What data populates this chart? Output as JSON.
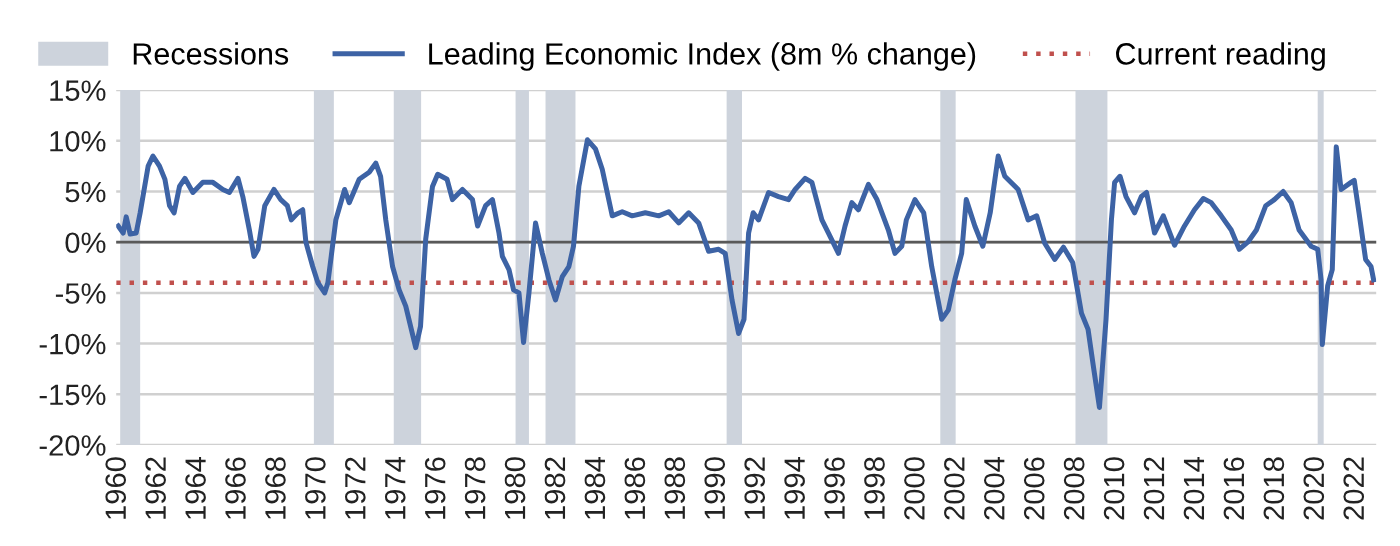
{
  "chart_data": {
    "type": "line",
    "x": [
      1960.0,
      1960.25,
      1960.4,
      1960.6,
      1960.9,
      1961.1,
      1961.5,
      1961.74,
      1962.07,
      1962.34,
      1962.57,
      1962.8,
      1963.07,
      1963.34,
      1963.74,
      1964.24,
      1964.74,
      1965.24,
      1965.57,
      1966.0,
      1966.24,
      1966.57,
      1966.8,
      1967.0,
      1967.34,
      1967.8,
      1968.14,
      1968.47,
      1968.67,
      1969.0,
      1969.24,
      1969.4,
      1969.74,
      1970.0,
      1970.34,
      1970.5,
      1970.9,
      1971.34,
      1971.57,
      1972.07,
      1972.57,
      1972.9,
      1973.14,
      1973.4,
      1973.74,
      1974.07,
      1974.4,
      1974.9,
      1975.14,
      1975.4,
      1975.74,
      1976.0,
      1976.47,
      1976.74,
      1977.24,
      1977.74,
      1978.0,
      1978.4,
      1978.74,
      1979.07,
      1979.24,
      1979.57,
      1979.8,
      1980.07,
      1980.3,
      1980.57,
      1980.9,
      1981.24,
      1981.57,
      1981.9,
      1982.24,
      1982.57,
      1982.8,
      1983.07,
      1983.5,
      1983.9,
      1984.24,
      1984.74,
      1985.24,
      1985.74,
      1986.4,
      1987.07,
      1987.57,
      1988.07,
      1988.57,
      1989.07,
      1989.57,
      1990.07,
      1990.4,
      1990.74,
      1991.07,
      1991.34,
      1991.57,
      1991.8,
      1992.07,
      1992.57,
      1993.07,
      1993.57,
      1993.9,
      1994.4,
      1994.74,
      1995.24,
      1995.57,
      1996.07,
      1996.4,
      1996.74,
      1997.07,
      1997.57,
      1998.0,
      1998.57,
      1998.9,
      1999.24,
      1999.47,
      1999.9,
      2000.34,
      2000.74,
      2001.24,
      2001.57,
      2001.9,
      2002.24,
      2002.47,
      2002.9,
      2003.3,
      2003.67,
      2004.07,
      2004.4,
      2005.07,
      2005.57,
      2006.0,
      2006.4,
      2006.9,
      2007.34,
      2007.8,
      2008.24,
      2008.57,
      2008.84,
      2009.14,
      2009.47,
      2009.74,
      2009.9,
      2010.17,
      2010.47,
      2010.9,
      2011.24,
      2011.5,
      2011.9,
      2012.34,
      2012.9,
      2013.4,
      2013.9,
      2014.34,
      2014.74,
      2015.24,
      2015.74,
      2016.14,
      2016.57,
      2017.0,
      2017.47,
      2017.9,
      2018.34,
      2018.74,
      2019.14,
      2019.74,
      2020.07,
      2020.24,
      2020.3,
      2020.57,
      2020.8,
      2021.0,
      2021.24,
      2021.74,
      2021.9,
      2022.14,
      2022.47,
      2022.74,
      2022.87
    ],
    "series": [
      {
        "name": "Leading Economic Index (8m % change)",
        "color": "#3d63a5",
        "values": [
          1.6,
          0.9,
          2.5,
          0.8,
          0.9,
          2.9,
          7.5,
          8.5,
          7.5,
          6.2,
          3.6,
          2.9,
          5.5,
          6.3,
          4.9,
          5.9,
          5.9,
          5.2,
          4.9,
          6.3,
          4.5,
          1.2,
          -1.4,
          -0.7,
          3.6,
          5.2,
          4.2,
          3.6,
          2.2,
          2.9,
          3.2,
          0,
          -2.4,
          -4.0,
          -5.0,
          -4.0,
          2.2,
          5.2,
          3.9,
          6.2,
          6.9,
          7.8,
          6.5,
          2.2,
          -2.4,
          -4.7,
          -6.3,
          -10.4,
          -8.3,
          0.3,
          5.5,
          6.7,
          6.2,
          4.2,
          5.2,
          4.2,
          1.6,
          3.6,
          4.2,
          0.9,
          -1.4,
          -2.7,
          -4.7,
          -5.0,
          -9.9,
          -5.0,
          1.9,
          -1.1,
          -3.7,
          -5.7,
          -3.4,
          -2.4,
          -0.4,
          5.5,
          10.1,
          9.2,
          7.2,
          2.6,
          3.0,
          2.6,
          2.9,
          2.6,
          3.0,
          1.9,
          2.9,
          1.9,
          -0.9,
          -0.7,
          -1.1,
          -5.7,
          -9.0,
          -7.6,
          0.9,
          2.9,
          2.2,
          4.9,
          4.5,
          4.2,
          5.2,
          6.3,
          5.9,
          2.2,
          0.9,
          -1.1,
          1.6,
          3.9,
          3.2,
          5.7,
          4.2,
          1.2,
          -1.1,
          -0.4,
          2.2,
          4.2,
          2.9,
          -2.4,
          -7.6,
          -6.7,
          -3.7,
          -1.1,
          4.2,
          1.6,
          -0.4,
          2.9,
          8.5,
          6.5,
          5.2,
          2.2,
          2.6,
          -0.1,
          -1.7,
          -0.5,
          -2.0,
          -7.0,
          -8.6,
          -12.3,
          -16.3,
          -7.6,
          2.2,
          5.9,
          6.5,
          4.5,
          2.9,
          4.5,
          4.9,
          0.9,
          2.6,
          -0.3,
          1.6,
          3.2,
          4.3,
          3.9,
          2.6,
          1.2,
          -0.7,
          0,
          1.2,
          3.6,
          4.2,
          5.0,
          3.9,
          1.2,
          -0.4,
          -0.7,
          -3.7,
          -10.1,
          -4.3,
          -2.7,
          9.4,
          5.2,
          5.9,
          6.1,
          2.9,
          -1.7,
          -2.4,
          -3.7
        ]
      }
    ],
    "xlim": [
      1959.9,
      2023.0
    ],
    "xticks": [
      1960,
      1962,
      1964,
      1966,
      1968,
      1970,
      1972,
      1974,
      1976,
      1978,
      1980,
      1982,
      1984,
      1986,
      1988,
      1990,
      1992,
      1994,
      1996,
      1998,
      2000,
      2002,
      2004,
      2006,
      2008,
      2010,
      2012,
      2014,
      2016,
      2018,
      2020,
      2022
    ],
    "ylim": [
      -20,
      15
    ],
    "yticks": [
      {
        "value": -20,
        "label": "-20%"
      },
      {
        "value": -15,
        "label": "-15%"
      },
      {
        "value": -10,
        "label": "-10%"
      },
      {
        "value": -5,
        "label": "-5%"
      },
      {
        "value": 0,
        "label": "0%"
      },
      {
        "value": 5,
        "label": "5%"
      },
      {
        "value": 10,
        "label": "10%"
      },
      {
        "value": 15,
        "label": "15%"
      }
    ],
    "bands": [
      {
        "axis": "x",
        "from": 1960.1,
        "to": 1961.1,
        "label": "Recessions",
        "color": "#cdd3dc"
      },
      {
        "axis": "x",
        "from": 1969.8,
        "to": 1970.8,
        "color": "#cdd3dc"
      },
      {
        "axis": "x",
        "from": 1973.8,
        "to": 1975.17,
        "color": "#cdd3dc"
      },
      {
        "axis": "x",
        "from": 1979.9,
        "to": 1980.57,
        "color": "#cdd3dc"
      },
      {
        "axis": "x",
        "from": 1981.4,
        "to": 1982.9,
        "color": "#cdd3dc"
      },
      {
        "axis": "x",
        "from": 1990.47,
        "to": 1991.24,
        "color": "#cdd3dc"
      },
      {
        "axis": "x",
        "from": 2001.17,
        "to": 2001.94,
        "color": "#cdd3dc"
      },
      {
        "axis": "x",
        "from": 2007.94,
        "to": 2009.54,
        "color": "#cdd3dc"
      },
      {
        "axis": "x",
        "from": 2020.07,
        "to": 2020.37,
        "color": "#cdd3dc"
      }
    ],
    "ref_lines": [
      {
        "axis": "y",
        "value": 0,
        "color": "#595959",
        "line_style": "solid"
      },
      {
        "axis": "y",
        "value": -4,
        "label": "Current reading",
        "color": "#c0504d",
        "line_style": "dotted"
      }
    ],
    "grid": "y",
    "legend": "top",
    "marker": "none",
    "line_style": "solid"
  }
}
